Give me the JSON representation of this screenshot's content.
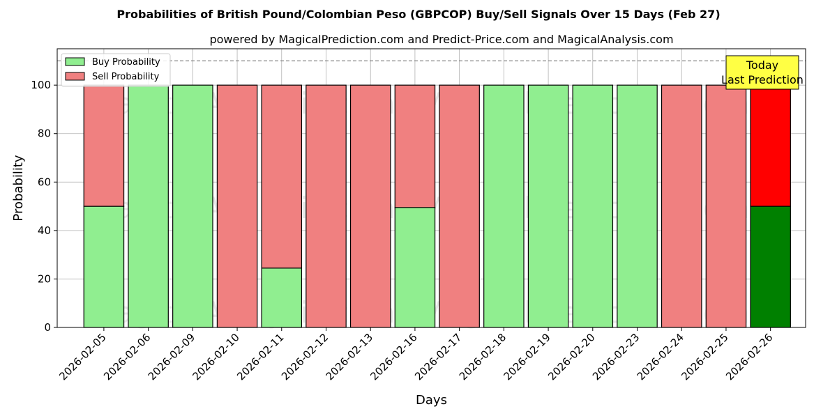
{
  "chart_data": {
    "type": "bar",
    "stacked": true,
    "title": "Probabilities of British Pound/Colombian Peso (GBPCOP) Buy/Sell Signals Over 15 Days (Feb 27)",
    "subtitle": "powered by MagicalPrediction.com and Predict-Price.com and MagicalAnalysis.com",
    "xlabel": "Days",
    "ylabel": "Probability",
    "ylim": [
      0,
      115
    ],
    "yticks": [
      0,
      20,
      40,
      60,
      80,
      100
    ],
    "grid": true,
    "legend_position": "top-left",
    "reference_line": 110,
    "categories": [
      "2026-02-05",
      "2026-02-06",
      "2026-02-09",
      "2026-02-10",
      "2026-02-11",
      "2026-02-12",
      "2026-02-13",
      "2026-02-16",
      "2026-02-17",
      "2026-02-18",
      "2026-02-19",
      "2026-02-20",
      "2026-02-23",
      "2026-02-24",
      "2026-02-25",
      "2026-02-26"
    ],
    "series": [
      {
        "name": "Buy Probability",
        "color": "#90ee90",
        "highlight_color": "#008000",
        "values": [
          50,
          100,
          100,
          0,
          24.5,
          0,
          0,
          49.5,
          0,
          100,
          100,
          100,
          100,
          0,
          0,
          50
        ]
      },
      {
        "name": "Sell Probability",
        "color": "#f08080",
        "highlight_color": "#ff0000",
        "values": [
          50,
          0,
          0,
          100,
          75.5,
          100,
          100,
          50.5,
          100,
          0,
          0,
          0,
          0,
          100,
          100,
          50
        ]
      }
    ],
    "highlight_index": 15,
    "annotation": {
      "lines": [
        "Today",
        "Last Prediction"
      ],
      "color": "#ffff44"
    },
    "watermarks": [
      "MagicalAnalysis.com",
      "MagicalPrediction.com"
    ]
  }
}
